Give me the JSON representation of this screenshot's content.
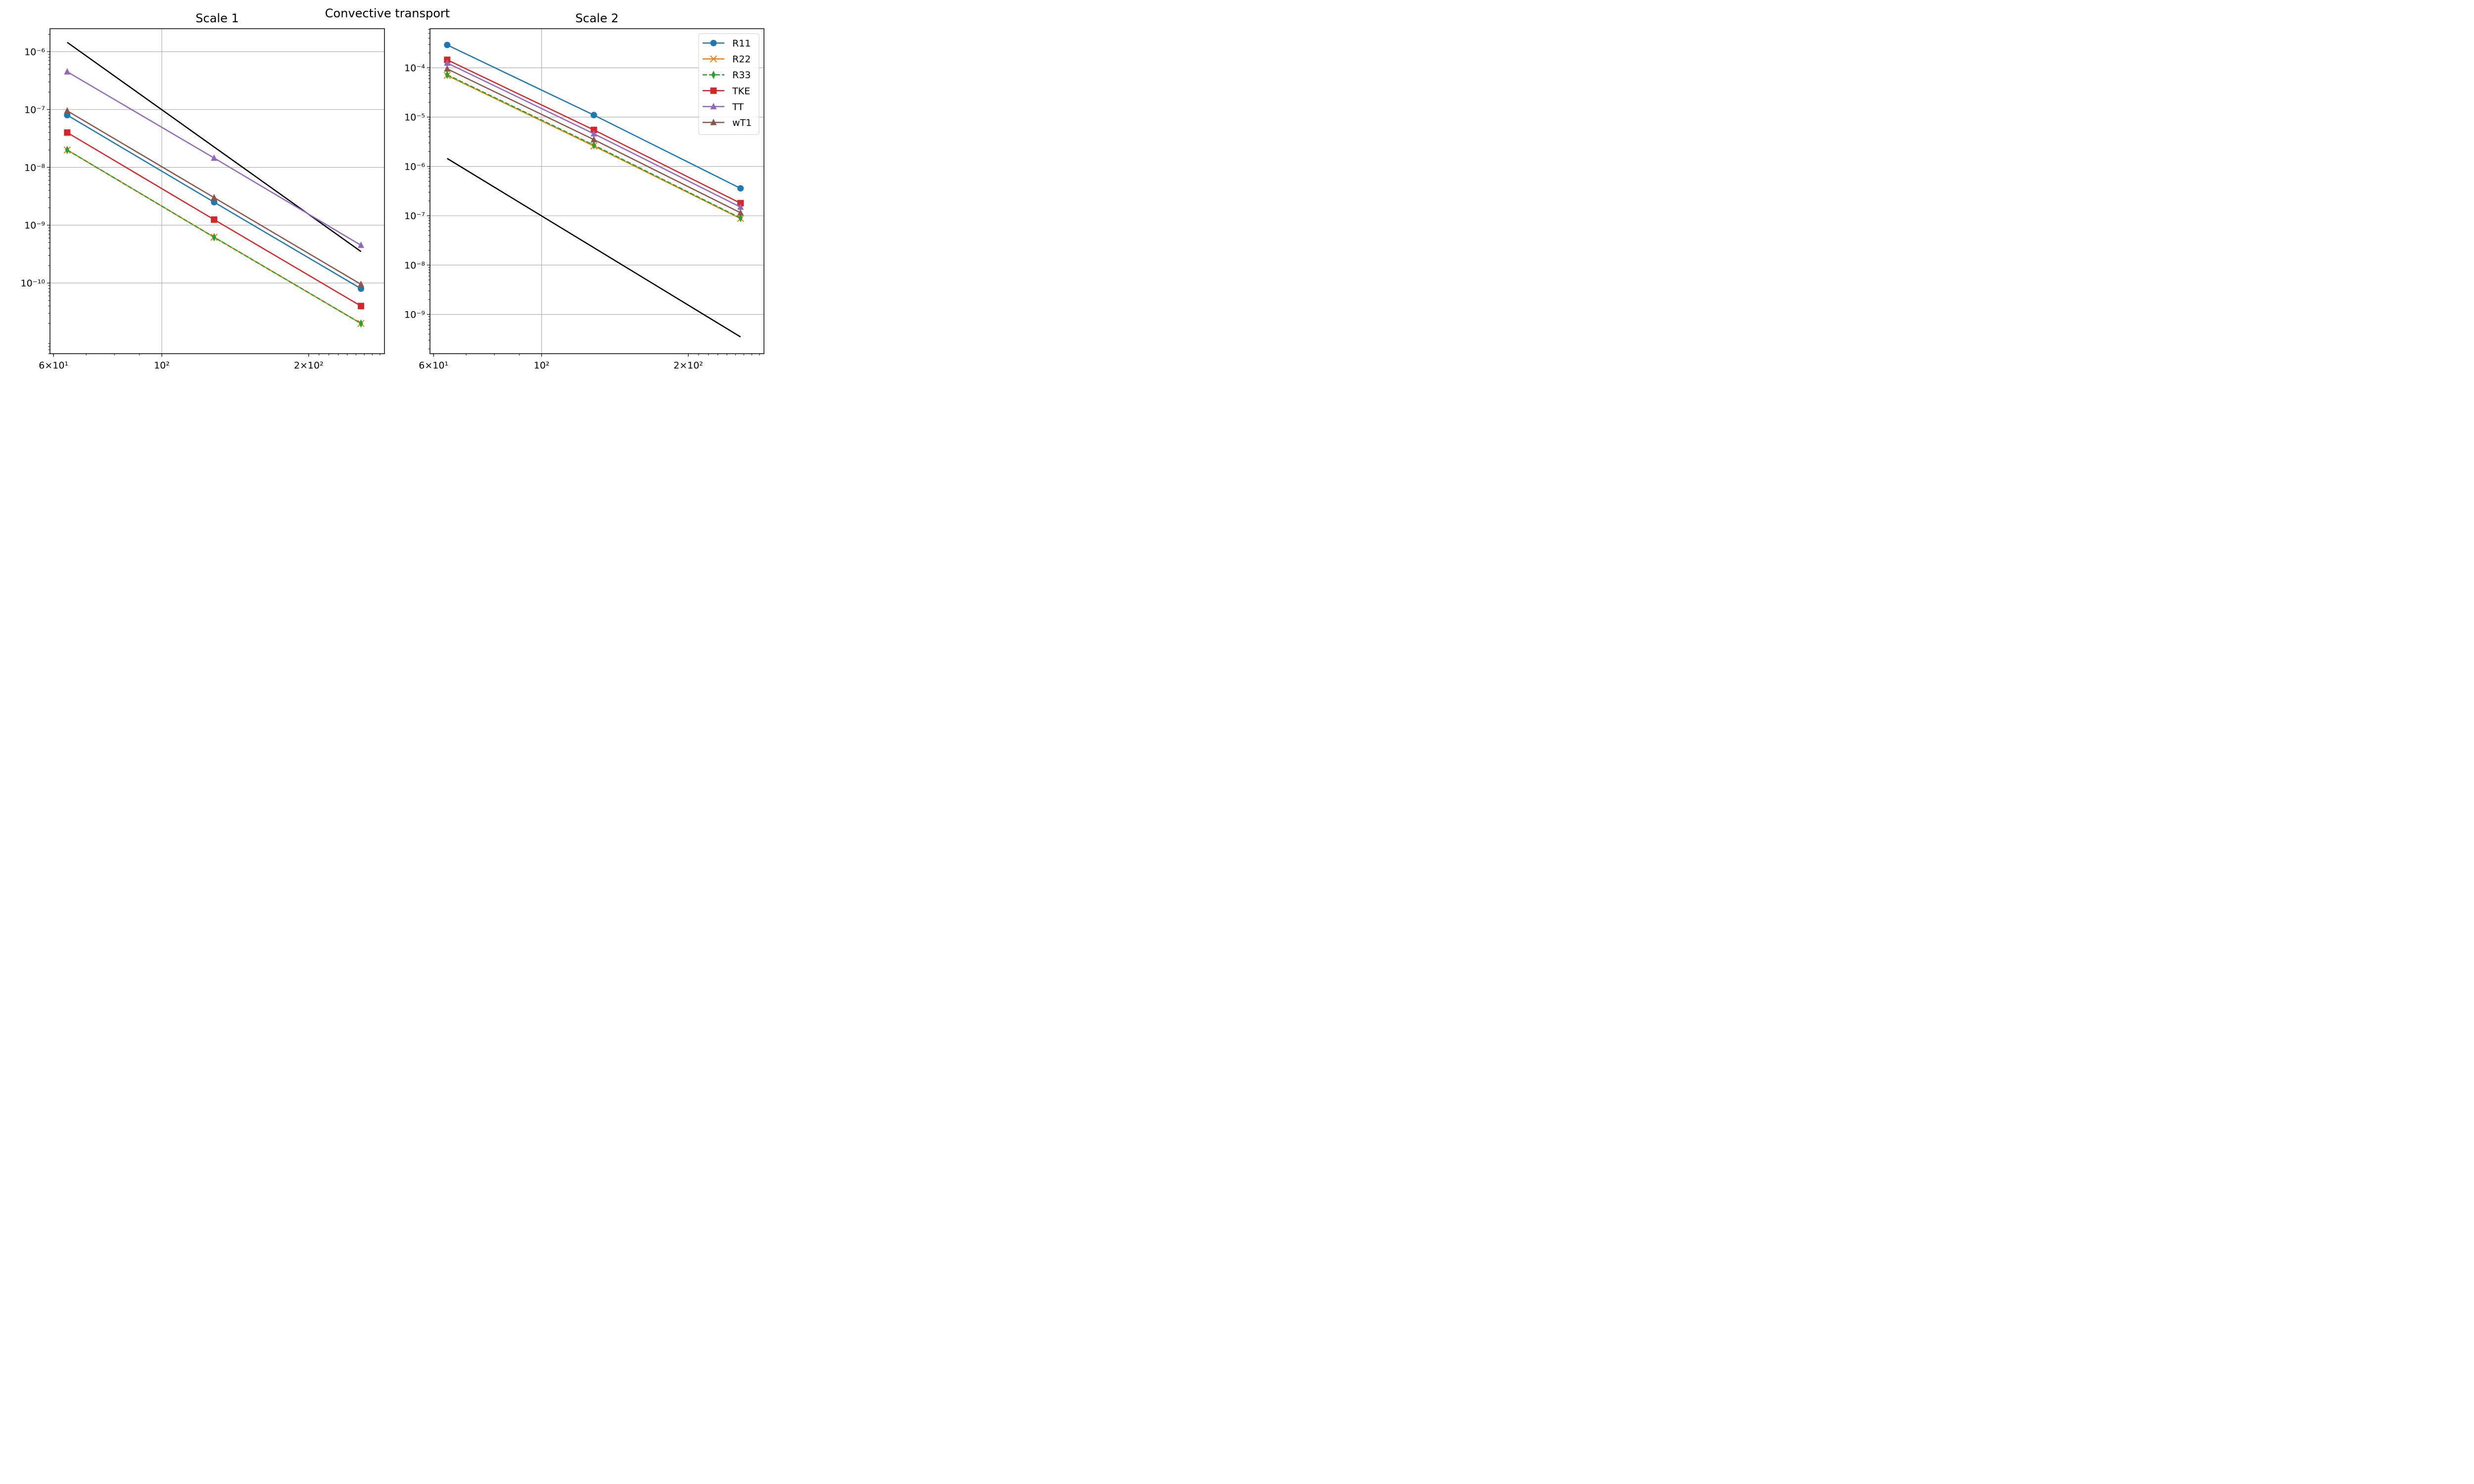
{
  "figure": {
    "suptitle": "Convective transport"
  },
  "chart_data": [
    {
      "type": "line",
      "title": "Scale 1",
      "xlabel": "",
      "ylabel": "",
      "xscale": "log",
      "yscale": "log",
      "xlim": [
        59,
        286
      ],
      "ylim": [
        6e-12,
        2.5e-06
      ],
      "grid": true,
      "x": [
        64,
        128,
        256
      ],
      "x_ticks": [
        {
          "value": 60,
          "label": "6×10¹"
        },
        {
          "value": 100,
          "label": "10²"
        },
        {
          "value": 200,
          "label": "2×10²"
        }
      ],
      "y_ticks": [
        {
          "value": 1e-06,
          "label": "10⁻⁶"
        },
        {
          "value": 1e-07,
          "label": "10⁻⁷"
        },
        {
          "value": 1e-08,
          "label": "10⁻⁸"
        },
        {
          "value": 1e-09,
          "label": "10⁻⁹"
        },
        {
          "value": 1e-10,
          "label": "10⁻¹⁰"
        }
      ],
      "series": [
        {
          "name": "R11",
          "color": "#1f77b4",
          "marker": "circle",
          "dash": false,
          "values": [
            8e-08,
            2.5e-09,
            8e-11
          ]
        },
        {
          "name": "R22",
          "color": "#ff7f0e",
          "marker": "x",
          "dash": false,
          "values": [
            2e-08,
            6.2e-10,
            2e-11
          ]
        },
        {
          "name": "R33",
          "color": "#2ca02c",
          "marker": "diamond",
          "dash": true,
          "values": [
            2e-08,
            6.2e-10,
            2e-11
          ]
        },
        {
          "name": "TKE",
          "color": "#d62728",
          "marker": "square",
          "dash": false,
          "values": [
            4e-08,
            1.25e-09,
            4e-11
          ]
        },
        {
          "name": "TT",
          "color": "#9467bd",
          "marker": "triangle",
          "dash": false,
          "values": [
            4.5e-07,
            1.45e-08,
            4.5e-10
          ]
        },
        {
          "name": "wT1",
          "color": "#8c564b",
          "marker": "triangle",
          "dash": false,
          "values": [
            9.5e-08,
            3e-09,
            9.5e-11
          ]
        }
      ],
      "reference_line": {
        "color": "#000000",
        "x": [
          64,
          256
        ],
        "y": [
          1.45e-06,
          3.5e-10
        ]
      }
    },
    {
      "type": "line",
      "title": "Scale 2",
      "xlabel": "",
      "ylabel": "",
      "xscale": "log",
      "yscale": "log",
      "xlim": [
        59,
        286
      ],
      "ylim": [
        1.6e-10,
        0.00062
      ],
      "grid": true,
      "legend": "upper-right",
      "x": [
        64,
        128,
        256
      ],
      "x_ticks": [
        {
          "value": 60,
          "label": "6×10¹"
        },
        {
          "value": 100,
          "label": "10²"
        },
        {
          "value": 200,
          "label": "2×10²"
        }
      ],
      "y_ticks": [
        {
          "value": 0.0001,
          "label": "10⁻⁴"
        },
        {
          "value": 1e-05,
          "label": "10⁻⁵"
        },
        {
          "value": 1e-06,
          "label": "10⁻⁶"
        },
        {
          "value": 1e-07,
          "label": "10⁻⁷"
        },
        {
          "value": 1e-08,
          "label": "10⁻⁸"
        },
        {
          "value": 1e-09,
          "label": "10⁻⁹"
        }
      ],
      "series": [
        {
          "name": "R11",
          "color": "#1f77b4",
          "marker": "circle",
          "dash": false,
          "values": [
            0.00029,
            1.1e-05,
            3.6e-07
          ]
        },
        {
          "name": "R22",
          "color": "#ff7f0e",
          "marker": "x",
          "dash": false,
          "values": [
            7e-05,
            2.6e-06,
            8.8e-08
          ]
        },
        {
          "name": "R33",
          "color": "#2ca02c",
          "marker": "diamond",
          "dash": true,
          "values": [
            7.2e-05,
            2.7e-06,
            9e-08
          ]
        },
        {
          "name": "TKE",
          "color": "#d62728",
          "marker": "square",
          "dash": false,
          "values": [
            0.000145,
            5.5e-06,
            1.8e-07
          ]
        },
        {
          "name": "TT",
          "color": "#9467bd",
          "marker": "triangle",
          "dash": false,
          "values": [
            0.000125,
            4.6e-06,
            1.5e-07
          ]
        },
        {
          "name": "wT1",
          "color": "#8c564b",
          "marker": "triangle",
          "dash": false,
          "values": [
            9.5e-05,
            3.5e-06,
            1.15e-07
          ]
        }
      ],
      "reference_line": {
        "color": "#000000",
        "x": [
          64,
          256
        ],
        "y": [
          1.45e-06,
          3.5e-10
        ]
      }
    }
  ]
}
